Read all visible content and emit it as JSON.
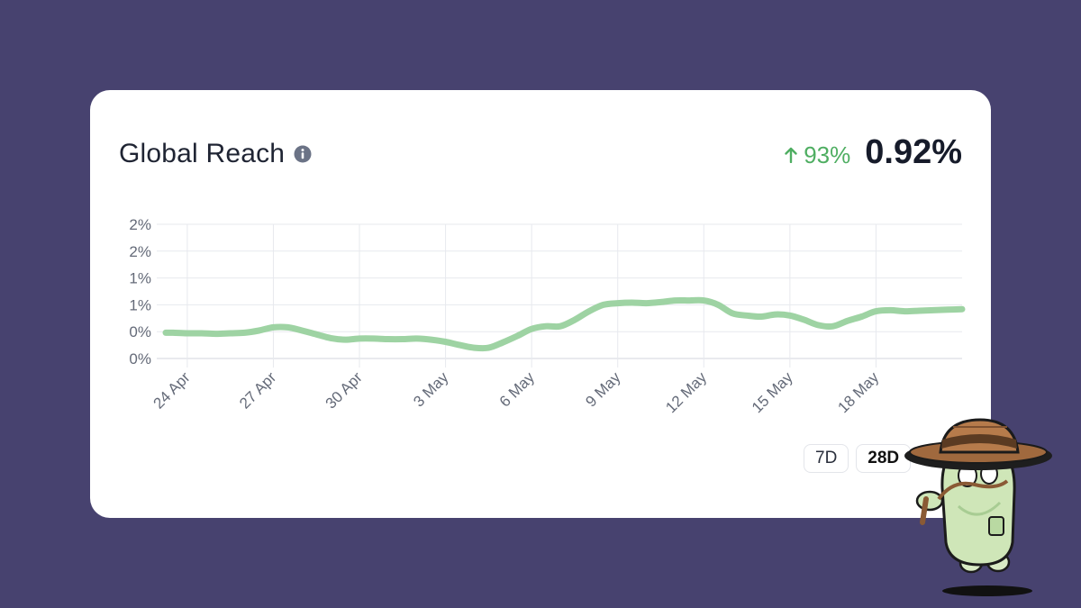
{
  "card": {
    "title": "Global Reach",
    "delta_text": "93%",
    "value_text": "0.92%"
  },
  "range_buttons": [
    {
      "label": "7D",
      "active": false
    },
    {
      "label": "28D",
      "active": true
    }
  ],
  "colors": {
    "background": "#47426f",
    "line": "#9ed3a3",
    "positive": "#4fae62",
    "info_icon": "#6b7386"
  },
  "icons": {
    "info": "info-circle-icon",
    "delta": "arrow-up-icon"
  },
  "chart_data": {
    "type": "line",
    "title": "",
    "xlabel": "",
    "ylabel": "",
    "ylim": [
      0,
      2.5
    ],
    "y_ticks": [
      0,
      0.5,
      1,
      1.5,
      2,
      2.5
    ],
    "y_tick_labels": [
      "0%",
      "0%",
      "1%",
      "1%",
      "2%",
      "2%"
    ],
    "x_tick_labels": [
      "24 Apr",
      "27 Apr",
      "30 Apr",
      "3 May",
      "6 May",
      "9 May",
      "12 May",
      "15 May",
      "18 May"
    ],
    "x_tick_positions": [
      1,
      4,
      7,
      10,
      13,
      16,
      19,
      22,
      25
    ],
    "x_range": [
      0.25,
      28
    ],
    "grid": true,
    "series": [
      {
        "x": [
          0.25,
          0.5,
          1,
          1.5,
          2,
          2.5,
          3,
          3.5,
          4,
          4.5,
          5,
          5.5,
          6,
          6.5,
          7,
          7.5,
          8,
          8.5,
          9,
          9.5,
          10,
          10.5,
          11,
          11.5,
          12,
          12.5,
          13,
          13.5,
          14,
          14.5,
          15,
          15.5,
          16,
          16.5,
          17,
          17.5,
          18,
          18.5,
          19,
          19.5,
          20,
          20.5,
          21,
          21.5,
          22,
          22.5,
          23,
          23.5,
          24,
          24.5,
          25,
          25.5,
          26,
          26.5,
          27,
          27.5,
          28
        ],
        "values": [
          0.48,
          0.48,
          0.47,
          0.47,
          0.46,
          0.47,
          0.48,
          0.52,
          0.58,
          0.58,
          0.52,
          0.45,
          0.38,
          0.35,
          0.37,
          0.37,
          0.36,
          0.36,
          0.37,
          0.35,
          0.31,
          0.25,
          0.2,
          0.2,
          0.3,
          0.42,
          0.55,
          0.6,
          0.6,
          0.72,
          0.88,
          1.0,
          1.03,
          1.04,
          1.03,
          1.05,
          1.08,
          1.08,
          1.08,
          1.0,
          0.84,
          0.8,
          0.78,
          0.82,
          0.8,
          0.72,
          0.62,
          0.6,
          0.7,
          0.78,
          0.88,
          0.9,
          0.88,
          0.89,
          0.9,
          0.91,
          0.92
        ]
      }
    ]
  }
}
